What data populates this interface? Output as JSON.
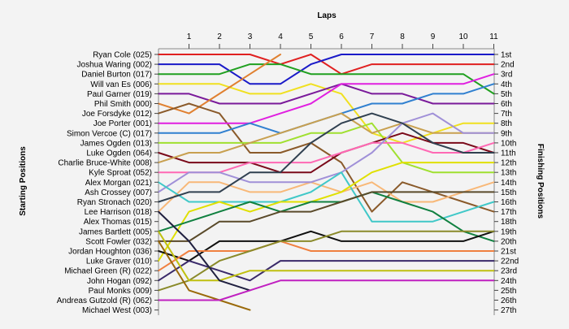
{
  "chart_data": {
    "type": "line",
    "title": "Laps",
    "ylabel_left": "Starting Positions",
    "ylabel_right": "Finishing Positions",
    "laps": [
      "1",
      "2",
      "3",
      "4",
      "5",
      "6",
      "7",
      "8",
      "9",
      "10",
      "11"
    ],
    "starting_labels": [
      "Ryan Cole (025)",
      "Joshua Waring (002)",
      "Daniel Burton (017)",
      "Will van Es (006)",
      "Paul Garner (019)",
      "Phil Smith (000)",
      "Joe Forsdyke (012)",
      "Joe Porter (001)",
      "Simon Vercoe  (C) (017)",
      "James Ogden (013)",
      "Luke Ogden (064)",
      "Charlie Bruce-White (008)",
      "Kyle Sproat (052)",
      "Alex Morgan (021)",
      "Ash Crossey (007)",
      "Ryan Stronach (020)",
      "Lee Harrison (018)",
      "Alex Thomas (015)",
      "James Bartlett (005)",
      "Scott Fowler (032)",
      "Jordan Houghton (036)",
      "Luke Graver (010)",
      "Michael Green (R) (022)",
      "John Hogan (092)",
      "Paul Monks (009)",
      "Andreas Gutzold (R) (062)",
      "Michael West (003)"
    ],
    "finishing_labels": [
      "1st",
      "2nd",
      "3rd",
      "4th",
      "5th",
      "6th",
      "7th",
      "8th",
      "9th",
      "10th",
      "11th",
      "12th",
      "13th",
      "14th",
      "15th",
      "16th",
      "17th",
      "18th",
      "19th",
      "20th",
      "21st",
      "22nd",
      "23rd",
      "24th",
      "25th",
      "26th",
      "27th"
    ],
    "series": [
      {
        "color": "#e02020",
        "positions": [
          1,
          1,
          1,
          1,
          2,
          1,
          3,
          2,
          2,
          2,
          2,
          2
        ]
      },
      {
        "color": "#1a1ac8",
        "positions": [
          2,
          2,
          2,
          4,
          4,
          2,
          1,
          1,
          1,
          1,
          1,
          1
        ]
      },
      {
        "color": "#20a020",
        "positions": [
          3,
          3,
          3,
          2,
          2,
          3,
          3,
          3,
          3,
          3,
          3,
          5
        ]
      },
      {
        "color": "#f0e020",
        "positions": [
          4,
          4,
          4,
          5,
          5,
          4,
          5,
          9,
          10,
          9,
          8,
          8
        ]
      },
      {
        "color": "#7a1a9a",
        "positions": [
          5,
          5,
          6,
          6,
          6,
          5,
          4,
          5,
          5,
          6,
          6,
          6
        ]
      },
      {
        "color": "#e08030",
        "positions": [
          6,
          7,
          5,
          3,
          1
        ]
      },
      {
        "color": "#8a5a2a",
        "positions": [
          7,
          6,
          7,
          11,
          11,
          10,
          12,
          17,
          14,
          15,
          16,
          17
        ]
      },
      {
        "color": "#e020e0",
        "positions": [
          8,
          8,
          8,
          8,
          7,
          6,
          4,
          4,
          4,
          4,
          4,
          3
        ]
      },
      {
        "color": "#3080d0",
        "positions": [
          9,
          9,
          9,
          8,
          9,
          8,
          7,
          6,
          6,
          5,
          5,
          4
        ]
      },
      {
        "color": "#a0e030",
        "positions": [
          10,
          10,
          10,
          10,
          10,
          9,
          9,
          8,
          12,
          13,
          13,
          13
        ]
      },
      {
        "color": "#7a0a1a",
        "positions": [
          11,
          12,
          12,
          12,
          13,
          13,
          11,
          10,
          9,
          10,
          10,
          11
        ]
      },
      {
        "color": "#c8a050",
        "positions": [
          12,
          11,
          11,
          10,
          9,
          8,
          7,
          9,
          8,
          9,
          9,
          9
        ]
      },
      {
        "color": "#ff69b4",
        "positions": [
          13,
          13,
          13,
          12,
          12,
          12,
          11,
          10,
          10,
          11,
          11,
          10
        ]
      },
      {
        "color": "#f8b878",
        "positions": [
          17,
          14,
          14,
          15,
          15,
          14,
          15,
          14,
          16,
          16,
          15,
          14
        ]
      },
      {
        "color": "#a090d8",
        "positions": [
          15,
          13,
          13,
          14,
          14,
          14,
          13,
          11,
          8,
          7,
          9,
          9
        ]
      },
      {
        "color": "#40c8c8",
        "positions": [
          14,
          16,
          16,
          16,
          16,
          15,
          13,
          18,
          18,
          18,
          17,
          16
        ]
      },
      {
        "color": "#304050",
        "positions": [
          16,
          15,
          15,
          13,
          13,
          10,
          8,
          7,
          8,
          10,
          11,
          11
        ]
      },
      {
        "color": "#e0e000",
        "positions": [
          22,
          17,
          16,
          17,
          16,
          16,
          15,
          13,
          12,
          12,
          12,
          12
        ]
      },
      {
        "color": "#108040",
        "positions": [
          19,
          18,
          17,
          16,
          17,
          16,
          16,
          15,
          16,
          17,
          19,
          20
        ]
      },
      {
        "color": "#5a4a2a",
        "positions": [
          20,
          20,
          18,
          18,
          17,
          17,
          16,
          15,
          15,
          15,
          15,
          15
        ]
      },
      {
        "color": "#101010",
        "positions": [
          21,
          22,
          20,
          20,
          20,
          19,
          20,
          20,
          20,
          20,
          20,
          19
        ]
      },
      {
        "color": "#f08040",
        "positions": [
          23,
          21,
          21,
          21,
          20,
          21,
          21,
          21,
          21,
          21,
          21,
          21
        ]
      },
      {
        "color": "#3a2a6a",
        "positions": [
          24,
          22,
          23,
          24,
          22,
          22,
          22,
          22,
          22,
          22,
          22,
          22
        ]
      },
      {
        "color": "#8a8a2a",
        "positions": [
          25,
          24,
          22,
          21,
          20,
          20,
          19,
          19,
          19,
          19,
          19,
          19
        ]
      },
      {
        "color": "#c0c010",
        "positions": [
          19,
          24,
          24,
          23,
          23,
          23,
          23,
          23,
          23,
          23,
          23,
          23
        ]
      },
      {
        "color": "#9a6a0a",
        "positions": [
          20,
          25,
          26,
          27
        ]
      },
      {
        "color": "#202040",
        "positions": [
          17,
          20,
          24,
          25
        ]
      },
      {
        "color": "#c020c0",
        "positions": [
          26,
          26,
          26,
          25,
          24,
          24,
          24,
          24,
          24,
          24,
          24,
          24
        ]
      }
    ]
  }
}
